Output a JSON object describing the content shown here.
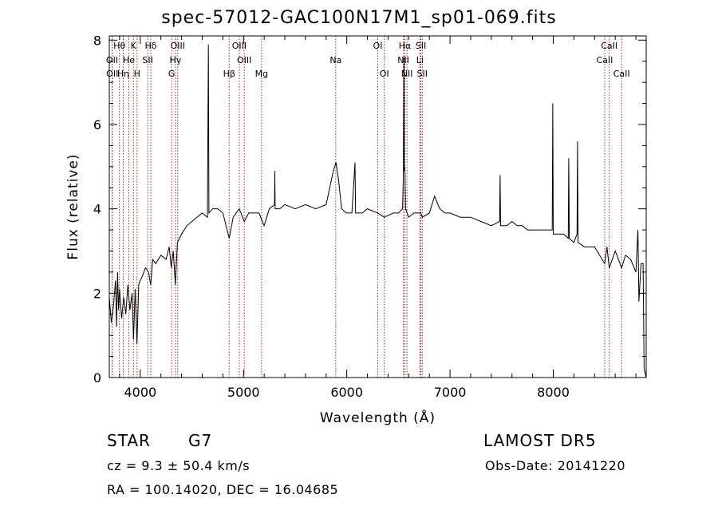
{
  "chart_data": {
    "type": "line",
    "title": "spec-57012-GAC100N17M1_sp01-069.fits",
    "xlabel": "Wavelength (Å)",
    "ylabel": "Flux (relative)",
    "xlim": [
      3700,
      8900
    ],
    "ylim": [
      0,
      8.1
    ],
    "xticks": [
      4000,
      5000,
      6000,
      7000,
      8000
    ],
    "yticks": [
      0,
      2,
      4,
      6,
      8
    ],
    "line_color": "#000000",
    "marker_color": "#b22222",
    "series": [
      {
        "values": [
          [
            3700,
            1.9
          ],
          [
            3720,
            1.3
          ],
          [
            3740,
            1.7
          ],
          [
            3760,
            2.3
          ],
          [
            3770,
            1.2
          ],
          [
            3780,
            2.5
          ],
          [
            3790,
            1.6
          ],
          [
            3800,
            2.1
          ],
          [
            3820,
            1.4
          ],
          [
            3840,
            1.9
          ],
          [
            3860,
            1.5
          ],
          [
            3880,
            2.2
          ],
          [
            3900,
            1.6
          ],
          [
            3920,
            2.0
          ],
          [
            3935,
            0.9
          ],
          [
            3950,
            2.1
          ],
          [
            3968,
            0.8
          ],
          [
            3985,
            2.2
          ],
          [
            4000,
            2.3
          ],
          [
            4020,
            2.4
          ],
          [
            4050,
            2.6
          ],
          [
            4080,
            2.5
          ],
          [
            4101,
            2.2
          ],
          [
            4120,
            2.8
          ],
          [
            4150,
            2.7
          ],
          [
            4200,
            2.9
          ],
          [
            4250,
            2.8
          ],
          [
            4280,
            3.1
          ],
          [
            4300,
            2.6
          ],
          [
            4320,
            3.0
          ],
          [
            4340,
            2.2
          ],
          [
            4360,
            3.2
          ],
          [
            4400,
            3.4
          ],
          [
            4450,
            3.6
          ],
          [
            4500,
            3.7
          ],
          [
            4550,
            3.8
          ],
          [
            4600,
            3.9
          ],
          [
            4650,
            3.8
          ],
          [
            4660,
            7.9
          ],
          [
            4665,
            3.9
          ],
          [
            4700,
            4.0
          ],
          [
            4750,
            4.0
          ],
          [
            4800,
            3.9
          ],
          [
            4861,
            3.3
          ],
          [
            4900,
            3.8
          ],
          [
            4959,
            4.0
          ],
          [
            5007,
            3.7
          ],
          [
            5050,
            3.9
          ],
          [
            5100,
            3.9
          ],
          [
            5150,
            3.9
          ],
          [
            5200,
            3.6
          ],
          [
            5250,
            4.0
          ],
          [
            5300,
            4.1
          ],
          [
            5303,
            4.9
          ],
          [
            5306,
            4.0
          ],
          [
            5350,
            4.0
          ],
          [
            5400,
            4.1
          ],
          [
            5500,
            4.0
          ],
          [
            5600,
            4.1
          ],
          [
            5700,
            4.0
          ],
          [
            5800,
            4.1
          ],
          [
            5870,
            4.9
          ],
          [
            5895,
            5.1
          ],
          [
            5920,
            4.7
          ],
          [
            5950,
            4.0
          ],
          [
            6000,
            3.9
          ],
          [
            6050,
            3.9
          ],
          [
            6080,
            5.1
          ],
          [
            6085,
            3.9
          ],
          [
            6150,
            3.9
          ],
          [
            6200,
            4.0
          ],
          [
            6300,
            3.9
          ],
          [
            6363,
            3.8
          ],
          [
            6450,
            3.9
          ],
          [
            6500,
            3.9
          ],
          [
            6540,
            4.0
          ],
          [
            6548,
            4.8
          ],
          [
            6554,
            7.6
          ],
          [
            6558,
            4.9
          ],
          [
            6563,
            5.0
          ],
          [
            6570,
            4.0
          ],
          [
            6600,
            3.8
          ],
          [
            6650,
            3.9
          ],
          [
            6717,
            3.9
          ],
          [
            6731,
            3.8
          ],
          [
            6800,
            3.9
          ],
          [
            6850,
            4.3
          ],
          [
            6900,
            4.0
          ],
          [
            6950,
            3.9
          ],
          [
            7000,
            3.9
          ],
          [
            7100,
            3.8
          ],
          [
            7200,
            3.8
          ],
          [
            7300,
            3.7
          ],
          [
            7400,
            3.6
          ],
          [
            7480,
            3.7
          ],
          [
            7485,
            4.8
          ],
          [
            7490,
            3.6
          ],
          [
            7550,
            3.6
          ],
          [
            7600,
            3.7
          ],
          [
            7650,
            3.6
          ],
          [
            7700,
            3.6
          ],
          [
            7750,
            3.5
          ],
          [
            7800,
            3.5
          ],
          [
            7900,
            3.5
          ],
          [
            7990,
            3.5
          ],
          [
            7995,
            6.5
          ],
          [
            8000,
            3.4
          ],
          [
            8050,
            3.4
          ],
          [
            8100,
            3.4
          ],
          [
            8145,
            3.3
          ],
          [
            8150,
            5.2
          ],
          [
            8155,
            3.3
          ],
          [
            8200,
            3.2
          ],
          [
            8230,
            3.4
          ],
          [
            8235,
            5.6
          ],
          [
            8240,
            3.2
          ],
          [
            8300,
            3.1
          ],
          [
            8400,
            3.1
          ],
          [
            8498,
            2.7
          ],
          [
            8520,
            3.1
          ],
          [
            8542,
            2.6
          ],
          [
            8600,
            3.0
          ],
          [
            8662,
            2.6
          ],
          [
            8700,
            2.9
          ],
          [
            8750,
            2.8
          ],
          [
            8800,
            2.5
          ],
          [
            8820,
            3.5
          ],
          [
            8830,
            1.8
          ],
          [
            8850,
            2.7
          ],
          [
            8870,
            2.7
          ],
          [
            8880,
            0.2
          ],
          [
            8900,
            0.0
          ]
        ]
      }
    ],
    "line_markers": [
      {
        "label": "Hθ",
        "wavelength": 3798,
        "row": 0
      },
      {
        "label": "K",
        "wavelength": 3934,
        "row": 0
      },
      {
        "label": "Hδ",
        "wavelength": 4102,
        "row": 0
      },
      {
        "label": "OIII",
        "wavelength": 4363,
        "row": 0
      },
      {
        "label": "OIII",
        "wavelength": 4959,
        "row": 0
      },
      {
        "label": "OI",
        "wavelength": 6300,
        "row": 0
      },
      {
        "label": "Hα",
        "wavelength": 6563,
        "row": 0
      },
      {
        "label": "SII",
        "wavelength": 6717,
        "row": 0
      },
      {
        "label": "CaII",
        "wavelength": 8542,
        "row": 0
      },
      {
        "label": "OII",
        "wavelength": 3727,
        "row": 1
      },
      {
        "label": "He",
        "wavelength": 3889,
        "row": 1
      },
      {
        "label": "SII",
        "wavelength": 4072,
        "row": 1
      },
      {
        "label": "Hγ",
        "wavelength": 4340,
        "row": 1
      },
      {
        "label": "OIII",
        "wavelength": 5007,
        "row": 1
      },
      {
        "label": "NII",
        "wavelength": 6548,
        "row": 1
      },
      {
        "label": "Li",
        "wavelength": 6708,
        "row": 1
      },
      {
        "label": "CaII",
        "wavelength": 8498,
        "row": 1
      },
      {
        "label": "Na",
        "wavelength": 5893,
        "row": 1
      },
      {
        "label": "OII",
        "wavelength": 3729,
        "row": 2
      },
      {
        "label": "Hη",
        "wavelength": 3835,
        "row": 2
      },
      {
        "label": "H",
        "wavelength": 3969,
        "row": 2
      },
      {
        "label": "G",
        "wavelength": 4304,
        "row": 2
      },
      {
        "label": "Hβ",
        "wavelength": 4861,
        "row": 2
      },
      {
        "label": "Mg",
        "wavelength": 5175,
        "row": 2
      },
      {
        "label": "OI",
        "wavelength": 6363,
        "row": 2
      },
      {
        "label": "NII",
        "wavelength": 6583,
        "row": 2
      },
      {
        "label": "SII",
        "wavelength": 6731,
        "row": 2
      },
      {
        "label": "CaII",
        "wavelength": 8662,
        "row": 2
      }
    ]
  },
  "info": {
    "object_class": "STAR",
    "subclass": "G7",
    "survey": "LAMOST  DR5",
    "redshift": "cz = 9.3 ± 50.4 km/s",
    "obs_date": "Obs-Date: 20141220",
    "coords": "RA = 100.14020, DEC =  16.04685"
  }
}
